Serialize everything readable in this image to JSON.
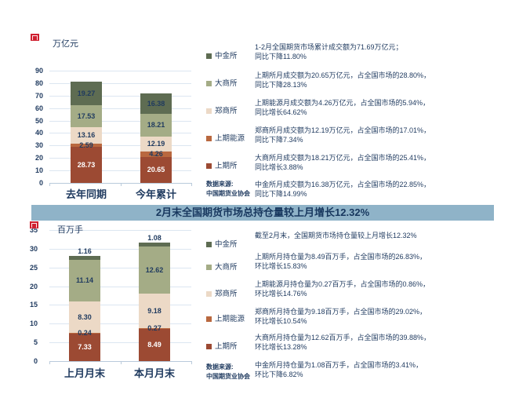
{
  "banner": {
    "text": "2月末全国期货市场总持仓量较上月增长12.32%"
  },
  "colors": {
    "text_navy": "#1F3A5F",
    "banner_bg": "#8FB3C8",
    "grid": "#DCE6F1",
    "axis": "#B9CADB",
    "logo_red": "#CF2030",
    "shfe": "#9C4A33",
    "ine": "#B9683F",
    "zce": "#ECD9C6",
    "dce": "#A4AC86",
    "cffex": "#5E6C52"
  },
  "chart_data": [
    {
      "type": "bar",
      "stacked": true,
      "unit_label": "万亿元",
      "categories": [
        "去年同期",
        "今年累计"
      ],
      "series": [
        {
          "name": "上期所",
          "values": [
            28.73,
            20.65
          ],
          "color": "#9C4A33",
          "label_color": "#FFFFFF"
        },
        {
          "name": "上期能源",
          "values": [
            2.59,
            4.26
          ],
          "color": "#B9683F",
          "label_color": "#1F3A5F"
        },
        {
          "name": "郑商所",
          "values": [
            13.16,
            12.19
          ],
          "color": "#ECD9C6",
          "label_color": "#1F3A5F"
        },
        {
          "name": "大商所",
          "values": [
            17.53,
            18.21
          ],
          "color": "#A4AC86",
          "label_color": "#1F3A5F"
        },
        {
          "name": "中金所",
          "values": [
            19.27,
            16.38
          ],
          "color": "#5E6C52",
          "label_color": "#1F3A5F"
        }
      ],
      "ylim": [
        0,
        90
      ],
      "ytick_step": 10,
      "grid": true,
      "legend_position": "right",
      "legend": [
        "中金所",
        "大商所",
        "郑商所",
        "上期能源",
        "上期所"
      ],
      "source": "数据来源:\n中国期货业协会",
      "annotations": [
        "1-2月全国期货市场累计成交额为71.69万亿元；\n同比下降11.80%",
        "上期所月成交额为20.65万亿元，占全国市场的28.80%，\n同比下降28.13%",
        "上期能源月成交额为4.26万亿元，占全国市场的5.94%，\n同比增长64.62%",
        "郑商所月成交额为12.19万亿元，占全国市场的17.01%，\n同比下降7.34%",
        "大商所月成交额为18.21万亿元，占全国市场的25.41%，\n同比增长3.88%",
        "中金所月成交额为16.38万亿元，占全国市场的22.85%，\n同比下降14.99%"
      ]
    },
    {
      "type": "bar",
      "stacked": true,
      "unit_label": "百万手",
      "categories": [
        "上月月末",
        "本月月末"
      ],
      "series": [
        {
          "name": "上期所",
          "values": [
            7.33,
            8.49
          ],
          "color": "#9C4A33",
          "label_color": "#FFFFFF"
        },
        {
          "name": "上期能源",
          "values": [
            0.24,
            0.27
          ],
          "color": "#B9683F",
          "label_color": "#1F3A5F"
        },
        {
          "name": "郑商所",
          "values": [
            8.3,
            9.18
          ],
          "color": "#ECD9C6",
          "label_color": "#1F3A5F"
        },
        {
          "name": "大商所",
          "values": [
            11.14,
            12.62
          ],
          "color": "#A4AC86",
          "label_color": "#1F3A5F"
        },
        {
          "name": "中金所",
          "values": [
            1.16,
            1.08
          ],
          "color": "#5E6C52",
          "label_color": "#1F3A5F"
        }
      ],
      "ylim": [
        0,
        35
      ],
      "ytick_step": 5,
      "grid": true,
      "legend_position": "right",
      "legend": [
        "中金所",
        "大商所",
        "郑商所",
        "上期能源",
        "上期所"
      ],
      "source": "数据来源:\n中国期货业协会",
      "annotations": [
        "截至2月末，全国期货市场持仓量较上月增长12.32%",
        "上期所月持仓量为8.49百万手，占全国市场的26.83%，\n环比增长15.83%",
        "上期能源月持仓量为0.27百万手，占全国市场的0.86%，\n环比增长14.76%",
        "郑商所月持仓量为9.18百万手，占全国市场的29.02%，\n环比增长10.54%",
        "大商所月持仓量为12.62百万手，占全国市场的39.88%，\n环比增长13.28%",
        "中金所月持仓量为1.08百万手，占全国市场的3.41%，\n环比下降6.82%"
      ]
    }
  ]
}
